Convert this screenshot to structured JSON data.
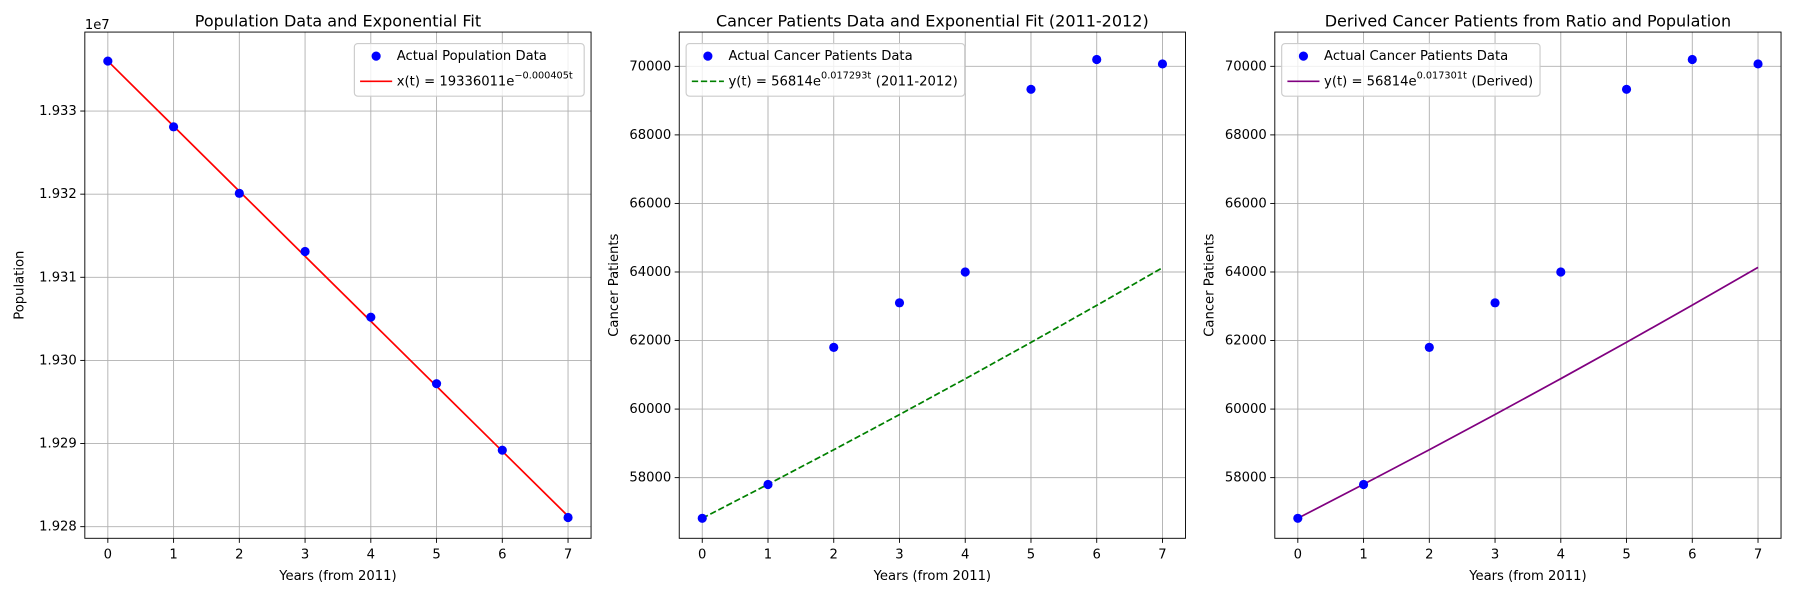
{
  "chart_data": [
    {
      "type": "scatter",
      "title": "Population Data and Exponential Fit",
      "xlabel": "Years (from 2011)",
      "ylabel": "Population",
      "y_offset_text": "1e7",
      "x": [
        0,
        1,
        2,
        3,
        4,
        5,
        6,
        7
      ],
      "series": [
        {
          "name": "Actual Population Data",
          "kind": "scatter",
          "color": "#0000ff",
          "values": [
            19336011,
            19328100,
            19320100,
            19313100,
            19305200,
            19297200,
            19289200,
            19281100
          ]
        },
        {
          "name": "x(t) = 19336011e",
          "name_sup": "−0.000405t",
          "kind": "line",
          "linestyle": "solid",
          "color": "#ff0000",
          "values": [
            19336011,
            19328181,
            19320355,
            19312532,
            19304712,
            19296895,
            19289081,
            19281271
          ]
        }
      ],
      "xlim": [
        -0.35,
        7.35
      ],
      "xticks": [
        0,
        1,
        2,
        3,
        4,
        5,
        6,
        7
      ],
      "ylim": [
        19278600,
        19339500
      ],
      "yticks": [
        {
          "value": 19280000,
          "label": "1.928"
        },
        {
          "value": 19290000,
          "label": "1.929"
        },
        {
          "value": 19300000,
          "label": "1.930"
        },
        {
          "value": 19310000,
          "label": "1.931"
        },
        {
          "value": 19320000,
          "label": "1.932"
        },
        {
          "value": 19330000,
          "label": "1.933"
        }
      ],
      "grid": true,
      "legend_loc": "upper right"
    },
    {
      "type": "scatter",
      "title": "Cancer Patients Data and Exponential Fit (2011-2012)",
      "xlabel": "Years (from 2011)",
      "ylabel": "Cancer Patients",
      "x": [
        0,
        1,
        2,
        3,
        4,
        5,
        6,
        7
      ],
      "series": [
        {
          "name": "Actual Cancer Patients Data",
          "kind": "scatter",
          "color": "#0000ff",
          "values": [
            56814,
            57800,
            61800,
            63100,
            64000,
            69330,
            70200,
            70070
          ]
        },
        {
          "name": "y(t) = 56814e",
          "name_sup": "0.017293t",
          "name_suffix": "(2011-2012)",
          "kind": "line",
          "linestyle": "dashed",
          "color": "#008000",
          "values": [
            56814,
            57805,
            58813,
            59839,
            60883,
            61945,
            63026,
            64125
          ]
        }
      ],
      "xlim": [
        -0.35,
        7.35
      ],
      "xticks": [
        0,
        1,
        2,
        3,
        4,
        5,
        6,
        7
      ],
      "ylim": [
        56230,
        71000
      ],
      "yticks": [
        58000,
        60000,
        62000,
        64000,
        66000,
        68000,
        70000
      ],
      "grid": true,
      "legend_loc": "upper left"
    },
    {
      "type": "scatter",
      "title": "Derived Cancer Patients from Ratio and Population",
      "xlabel": "Years (from 2011)",
      "ylabel": "Cancer Patients",
      "x": [
        0,
        1,
        2,
        3,
        4,
        5,
        6,
        7
      ],
      "series": [
        {
          "name": "Actual Cancer Patients Data",
          "kind": "scatter",
          "color": "#0000ff",
          "values": [
            56814,
            57800,
            61800,
            63100,
            64000,
            69330,
            70200,
            70070
          ]
        },
        {
          "name": "y(t) = 56814e",
          "name_sup": "0.017301t",
          "name_suffix": "(Derived)",
          "kind": "line",
          "linestyle": "solid",
          "color": "#800080",
          "values": [
            56814,
            57806,
            58815,
            59842,
            60887,
            61950,
            63032,
            64133
          ]
        }
      ],
      "xlim": [
        -0.35,
        7.35
      ],
      "xticks": [
        0,
        1,
        2,
        3,
        4,
        5,
        6,
        7
      ],
      "ylim": [
        56230,
        71000
      ],
      "yticks": [
        58000,
        60000,
        62000,
        64000,
        66000,
        68000,
        70000
      ],
      "grid": true,
      "legend_loc": "upper left"
    }
  ]
}
